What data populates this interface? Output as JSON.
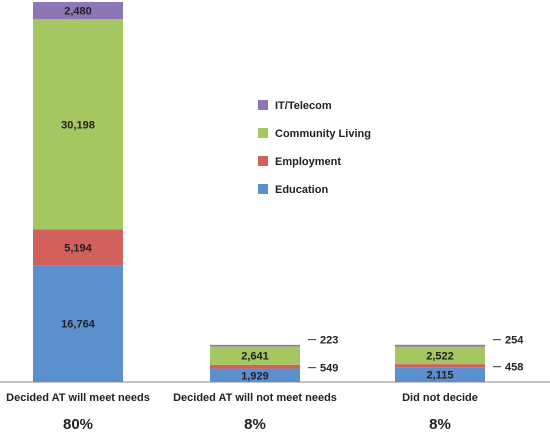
{
  "chart_data": {
    "type": "bar",
    "stacked": true,
    "categories": [
      "Decided AT will meet needs",
      "Decided AT will not meet needs",
      "Did not decide"
    ],
    "category_percents": [
      "80%",
      "8%",
      "8%"
    ],
    "series": [
      {
        "name": "Education",
        "color": "#5b8fce",
        "values": [
          16764,
          1929,
          2115
        ],
        "labels": [
          "16,764",
          "1,929",
          "2,115"
        ]
      },
      {
        "name": "Employment",
        "color": "#d2605d",
        "values": [
          5194,
          549,
          458
        ],
        "labels": [
          "5,194",
          "549",
          "458"
        ]
      },
      {
        "name": "Community Living",
        "color": "#a6c661",
        "values": [
          30198,
          2641,
          2522
        ],
        "labels": [
          "30,198",
          "2,641",
          "2,522"
        ]
      },
      {
        "name": "IT/Telecom",
        "color": "#8e75b5",
        "values": [
          2480,
          223,
          254
        ],
        "labels": [
          "2,480",
          "223",
          "254"
        ]
      }
    ],
    "legend_order": [
      "IT/Telecom",
      "Community Living",
      "Employment",
      "Education"
    ],
    "legend_position": "right-center",
    "grid": false,
    "ylim": [
      0,
      54636
    ]
  }
}
